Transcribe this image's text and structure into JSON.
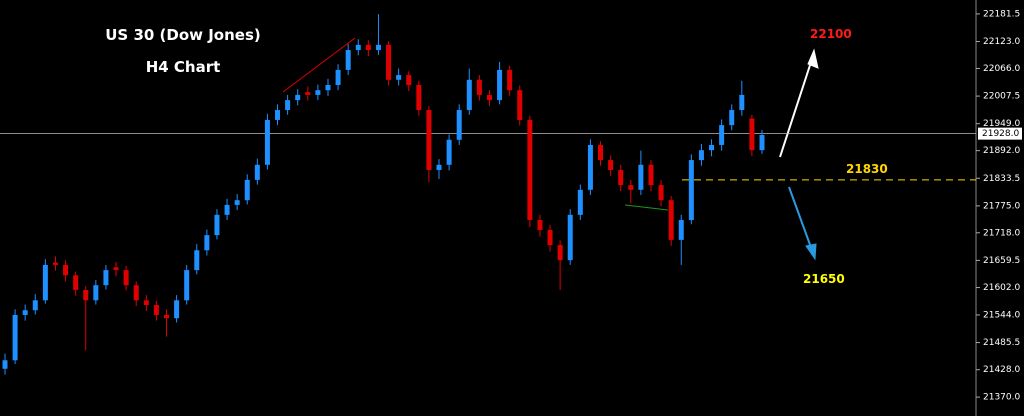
{
  "chart_data": {
    "type": "candlestick",
    "title": "US 30 (Dow Jones)",
    "subtitle": "H4 Chart",
    "up_color": "#1e90ff",
    "down_color": "#e00000",
    "open": [
      21430,
      21448,
      21544,
      21554,
      21575,
      21655,
      21650,
      21628,
      21597,
      21575,
      21607,
      21645,
      21639,
      21607,
      21575,
      21565,
      21544,
      21537,
      21575,
      21639,
      21681,
      21713,
      21756,
      21777,
      21787,
      21830,
      21862,
      21957,
      21978,
      21999,
      22016,
      22010,
      22020,
      22031,
      22063,
      22105,
      22116,
      22105,
      22116,
      22042,
      22052,
      22031,
      21978,
      21851,
      21862,
      21915,
      21978,
      22042,
      22010,
      21999,
      22063,
      22020,
      21957,
      21745,
      21724,
      21692,
      21660,
      21756,
      21809,
      21904,
      21872,
      21851,
      21819,
      21809,
      21862,
      21819,
      21787,
      21703,
      21745,
      21872,
      21893,
      21904,
      21946,
      21978,
      21960,
      21893
    ],
    "high": [
      21462,
      21556,
      21566,
      21588,
      21662,
      21668,
      21660,
      21636,
      21605,
      21618,
      21650,
      21656,
      21648,
      21615,
      21586,
      21574,
      21556,
      21586,
      21650,
      21694,
      21725,
      21768,
      21790,
      21800,
      21842,
      21875,
      21970,
      21990,
      22010,
      22022,
      22028,
      22032,
      22044,
      22075,
      22118,
      22128,
      22126,
      22181,
      22124,
      22066,
      22060,
      22040,
      21986,
      21874,
      21926,
      21990,
      22066,
      22052,
      22020,
      22080,
      22072,
      22030,
      21966,
      21756,
      21735,
      21702,
      21768,
      21820,
      21916,
      21912,
      21882,
      21862,
      21830,
      21892,
      21872,
      21830,
      21796,
      21756,
      21884,
      21906,
      21916,
      21958,
      21990,
      22040,
      21968,
      21936
    ],
    "low": [
      21418,
      21440,
      21532,
      21545,
      21568,
      21638,
      21615,
      21585,
      21469,
      21566,
      21598,
      21626,
      21596,
      21563,
      21552,
      21532,
      21498,
      21528,
      21566,
      21630,
      21670,
      21704,
      21745,
      21766,
      21778,
      21820,
      21852,
      21946,
      21968,
      21988,
      21998,
      21999,
      22008,
      22020,
      22052,
      22094,
      22092,
      22095,
      22030,
      22030,
      22018,
      21966,
      21825,
      21832,
      21850,
      21904,
      21968,
      21998,
      21986,
      21990,
      22008,
      21945,
      21730,
      21710,
      21678,
      21597,
      21650,
      21745,
      21798,
      21860,
      21838,
      21806,
      21780,
      21798,
      21806,
      21774,
      21690,
      21650,
      21736,
      21860,
      21880,
      21892,
      21935,
      21966,
      21880,
      21885
    ],
    "close": [
      21448,
      21544,
      21554,
      21575,
      21650,
      21650,
      21628,
      21597,
      21575,
      21607,
      21639,
      21639,
      21607,
      21575,
      21565,
      21544,
      21537,
      21575,
      21639,
      21681,
      21713,
      21756,
      21777,
      21787,
      21830,
      21862,
      21957,
      21978,
      21999,
      22010,
      22010,
      22020,
      22031,
      22063,
      22105,
      22116,
      22105,
      22116,
      22042,
      22052,
      22031,
      21978,
      21851,
      21862,
      21915,
      21978,
      22042,
      22010,
      21999,
      22063,
      22020,
      21957,
      21745,
      21724,
      21692,
      21660,
      21756,
      21809,
      21904,
      21872,
      21851,
      21819,
      21809,
      21862,
      21819,
      21787,
      21703,
      21745,
      21872,
      21893,
      21904,
      21946,
      21978,
      22010,
      21893,
      21925
    ],
    "ylim": [
      21330,
      22211
    ],
    "yticks": [
      22181.5,
      {
        "value": 22123,
        "label": "22123.0"
      },
      {
        "value": 22066,
        "label": "22066.0"
      },
      22007.5,
      {
        "value": 21949,
        "label": "21949.0"
      },
      {
        "value": 21892,
        "label": "21892.0"
      },
      21833.5,
      {
        "value": 21775,
        "label": "21775.0"
      },
      {
        "value": 21718,
        "label": "21718.0"
      },
      21659.5,
      {
        "value": 21602,
        "label": "21602.0"
      },
      {
        "value": 21544,
        "label": "21544.0"
      },
      21485.5,
      {
        "value": 21428,
        "label": "21428.0"
      },
      {
        "value": 21370,
        "label": "21370.0"
      }
    ],
    "last_price": {
      "value": 21928,
      "label": "21928.0"
    },
    "level": {
      "value": 21830,
      "color": "#ffd700"
    },
    "targets": [
      {
        "value": 22100,
        "color": "#ff1a1a"
      },
      {
        "value": 21650,
        "color": "#ffff00"
      }
    ]
  }
}
